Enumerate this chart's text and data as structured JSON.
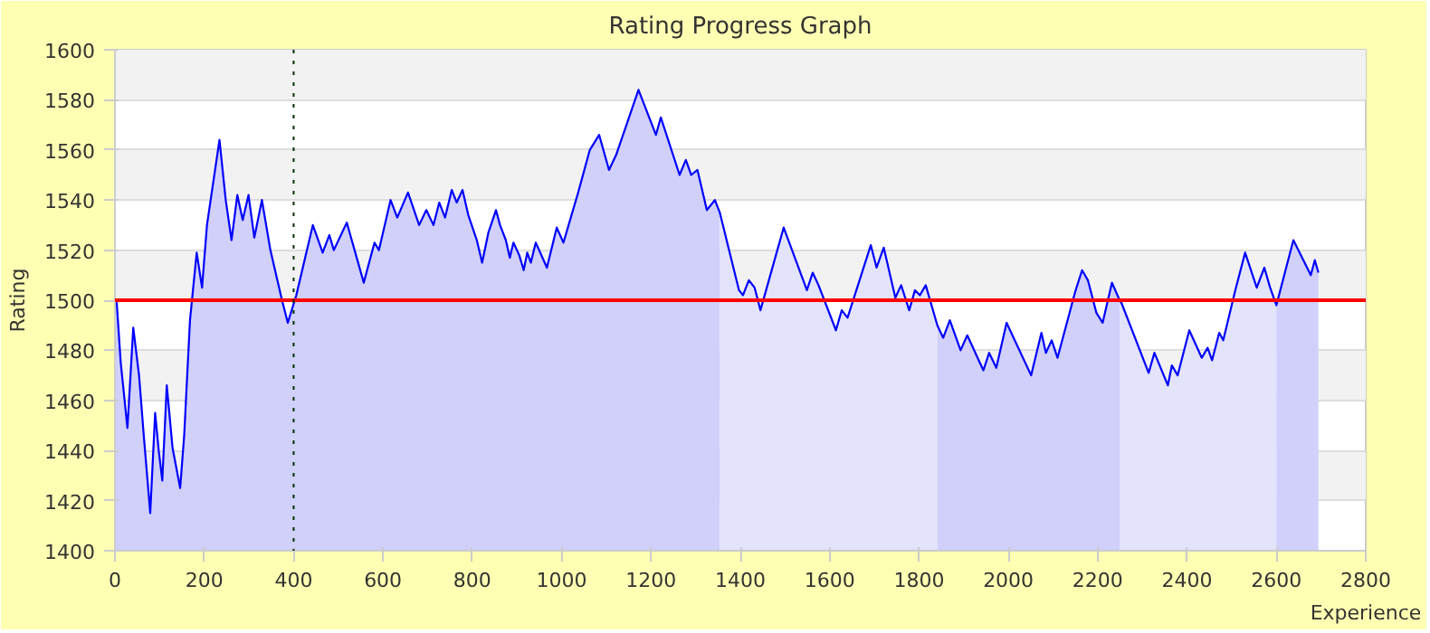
{
  "chart_data": {
    "type": "line",
    "title": "Rating Progress Graph",
    "xlabel": "Experience",
    "ylabel": "Rating",
    "xlim": [
      0,
      2800
    ],
    "xticks": [
      0,
      200,
      400,
      600,
      800,
      1000,
      1200,
      1400,
      1600,
      1800,
      2000,
      2200,
      2400,
      2600,
      2800
    ],
    "ylim": [
      1400,
      1600
    ],
    "yticks": [
      1400,
      1420,
      1440,
      1460,
      1480,
      1500,
      1520,
      1540,
      1560,
      1580,
      1600
    ],
    "grid": "y",
    "marker": "none",
    "line_style": "solid",
    "ref_lines": [
      {
        "axis": "y",
        "value": 1500,
        "color": "#ff0000",
        "line_style": "solid"
      },
      {
        "axis": "x",
        "value": 400,
        "color": "#003300",
        "line_style": "dotted"
      }
    ],
    "series": [
      {
        "type": "area",
        "color": "#d0d0fb",
        "x": [
          0,
          4,
          13,
          28,
          41,
          54,
          65,
          79,
          90,
          98,
          106,
          116,
          129,
          146,
          155,
          168,
          183,
          195,
          206,
          234,
          248,
          261,
          274,
          286,
          299,
          312,
          329,
          348,
          374,
          387,
          406,
          443,
          465,
          480,
          490,
          519,
          557,
          581,
          591,
          617,
          632,
          656,
          681,
          697,
          713,
          726,
          739,
          754,
          765,
          778,
          791,
          810,
          822,
          836,
          853,
          862,
          875,
          884,
          892,
          905,
          915,
          923,
          931,
          942,
          967,
          989,
          1004,
          1037,
          1063,
          1084,
          1106,
          1122,
          1172,
          1211,
          1222,
          1264,
          1278,
          1290,
          1304,
          1325,
          1343,
          1354
        ],
        "values": [
          1500,
          1499,
          1475,
          1449,
          1489,
          1470,
          1445,
          1415,
          1455,
          1440,
          1428,
          1466,
          1441,
          1425,
          1446,
          1492,
          1519,
          1505,
          1530,
          1564,
          1540,
          1524,
          1542,
          1532,
          1542,
          1525,
          1540,
          1520,
          1500,
          1491,
          1502,
          1530,
          1519,
          1526,
          1520,
          1531,
          1507,
          1523,
          1520,
          1540,
          1533,
          1543,
          1530,
          1536,
          1530,
          1539,
          1533,
          1544,
          1539,
          1544,
          1534,
          1524,
          1515,
          1527,
          1536,
          1530,
          1524,
          1517,
          1523,
          1518,
          1512,
          1519,
          1515,
          1523,
          1513,
          1529,
          1523,
          1543,
          1560,
          1566,
          1552,
          1558,
          1584,
          1566,
          1573,
          1550,
          1556,
          1550,
          1552,
          1536,
          1540,
          1535
        ]
      },
      {
        "type": "area",
        "color": "#e3e3fb",
        "x": [
          1354,
          1397,
          1406,
          1419,
          1432,
          1445,
          1497,
          1549,
          1562,
          1575,
          1614,
          1627,
          1640,
          1692,
          1705,
          1721,
          1747,
          1760,
          1778,
          1791,
          1802,
          1815,
          1841
        ],
        "values": [
          1535,
          1504,
          1502,
          1508,
          1505,
          1496,
          1529,
          1504,
          1511,
          1506,
          1488,
          1496,
          1493,
          1522,
          1513,
          1521,
          1501,
          1506,
          1496,
          1504,
          1502,
          1506,
          1490
        ]
      },
      {
        "type": "area",
        "color": "#d0d0fb",
        "x": [
          1841,
          1854,
          1869,
          1893,
          1908,
          1944,
          1957,
          1973,
          1996,
          2051,
          2074,
          2084,
          2097,
          2110,
          2149,
          2165,
          2178,
          2197,
          2211,
          2232,
          2249
        ],
        "values": [
          1490,
          1485,
          1492,
          1480,
          1486,
          1472,
          1479,
          1473,
          1491,
          1470,
          1487,
          1479,
          1484,
          1477,
          1503,
          1512,
          1508,
          1495,
          1491,
          1507,
          1500
        ]
      },
      {
        "type": "area",
        "color": "#e3e3fb",
        "x": [
          2249,
          2253,
          2314,
          2327,
          2357,
          2366,
          2379,
          2405,
          2433,
          2446,
          2456,
          2472,
          2481,
          2508,
          2530,
          2556,
          2573,
          2586,
          2600
        ],
        "values": [
          1500,
          1499,
          1471,
          1479,
          1466,
          1474,
          1470,
          1488,
          1477,
          1481,
          1476,
          1487,
          1484,
          1504,
          1519,
          1505,
          1513,
          1505,
          1498
        ]
      },
      {
        "type": "area",
        "color": "#d0d0fb",
        "x": [
          2600,
          2638,
          2677,
          2686,
          2694
        ],
        "values": [
          1498,
          1524,
          1510,
          1516,
          1511
        ]
      },
      {
        "color": "#0000ff",
        "x": [
          0,
          4,
          13,
          28,
          41,
          54,
          65,
          79,
          90,
          98,
          106,
          116,
          129,
          146,
          155,
          168,
          183,
          195,
          206,
          234,
          248,
          261,
          274,
          286,
          299,
          312,
          329,
          348,
          374,
          387,
          406,
          443,
          465,
          480,
          490,
          519,
          557,
          581,
          591,
          617,
          632,
          656,
          681,
          697,
          713,
          726,
          739,
          754,
          765,
          778,
          791,
          810,
          822,
          836,
          853,
          862,
          875,
          884,
          892,
          905,
          915,
          923,
          931,
          942,
          967,
          989,
          1004,
          1037,
          1063,
          1084,
          1106,
          1122,
          1172,
          1211,
          1222,
          1264,
          1278,
          1290,
          1304,
          1325,
          1343,
          1354,
          1397,
          1406,
          1419,
          1432,
          1445,
          1497,
          1549,
          1562,
          1575,
          1614,
          1627,
          1640,
          1692,
          1705,
          1721,
          1747,
          1760,
          1778,
          1791,
          1802,
          1815,
          1841,
          1854,
          1869,
          1893,
          1908,
          1944,
          1957,
          1973,
          1996,
          2051,
          2074,
          2084,
          2097,
          2110,
          2149,
          2165,
          2178,
          2197,
          2211,
          2232,
          2249,
          2253,
          2314,
          2327,
          2357,
          2366,
          2379,
          2405,
          2433,
          2446,
          2456,
          2472,
          2481,
          2508,
          2530,
          2556,
          2573,
          2586,
          2600,
          2638,
          2677,
          2686,
          2694
        ],
        "values": [
          1500,
          1499,
          1475,
          1449,
          1489,
          1470,
          1445,
          1415,
          1455,
          1440,
          1428,
          1466,
          1441,
          1425,
          1446,
          1492,
          1519,
          1505,
          1530,
          1564,
          1540,
          1524,
          1542,
          1532,
          1542,
          1525,
          1540,
          1520,
          1500,
          1491,
          1502,
          1530,
          1519,
          1526,
          1520,
          1531,
          1507,
          1523,
          1520,
          1540,
          1533,
          1543,
          1530,
          1536,
          1530,
          1539,
          1533,
          1544,
          1539,
          1544,
          1534,
          1524,
          1515,
          1527,
          1536,
          1530,
          1524,
          1517,
          1523,
          1518,
          1512,
          1519,
          1515,
          1523,
          1513,
          1529,
          1523,
          1543,
          1560,
          1566,
          1552,
          1558,
          1584,
          1566,
          1573,
          1550,
          1556,
          1550,
          1552,
          1536,
          1540,
          1535,
          1504,
          1502,
          1508,
          1505,
          1496,
          1529,
          1504,
          1511,
          1506,
          1488,
          1496,
          1493,
          1522,
          1513,
          1521,
          1501,
          1506,
          1496,
          1504,
          1502,
          1506,
          1490,
          1485,
          1492,
          1480,
          1486,
          1472,
          1479,
          1473,
          1491,
          1470,
          1487,
          1479,
          1484,
          1477,
          1503,
          1512,
          1508,
          1495,
          1491,
          1507,
          1500,
          1499,
          1471,
          1479,
          1466,
          1474,
          1470,
          1488,
          1477,
          1481,
          1476,
          1487,
          1484,
          1504,
          1519,
          1505,
          1513,
          1505,
          1498,
          1524,
          1510,
          1516,
          1511
        ]
      }
    ]
  }
}
